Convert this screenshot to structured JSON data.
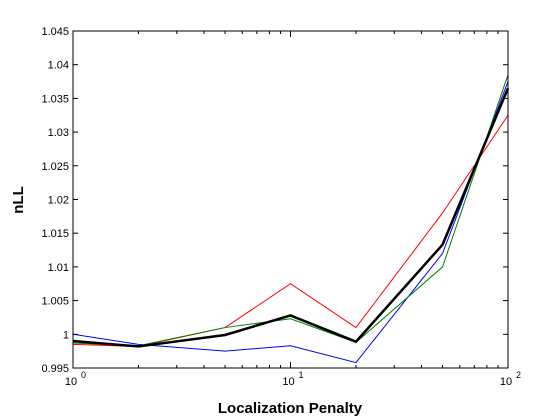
{
  "chart_data": {
    "type": "line",
    "title": "",
    "xlabel": "Localization Penalty",
    "ylabel": "nLL",
    "xscale": "log",
    "xlim": [
      1,
      100
    ],
    "ylim": [
      0.995,
      1.045
    ],
    "grid": false,
    "legend": "none",
    "yticks": [
      "0.995",
      "1",
      "1.005",
      "1.01",
      "1.015",
      "1.02",
      "1.025",
      "1.03",
      "1.035",
      "1.04",
      "1.045"
    ],
    "yticks_values": [
      0.995,
      1.0,
      1.005,
      1.01,
      1.015,
      1.02,
      1.025,
      1.03,
      1.035,
      1.04,
      1.045
    ],
    "xticks": [
      {
        "value": 1,
        "base": "10",
        "exp": "0"
      },
      {
        "value": 10,
        "base": "10",
        "exp": "1"
      },
      {
        "value": 100,
        "base": "10",
        "exp": "2"
      }
    ],
    "x": [
      1,
      2,
      5,
      10,
      20,
      50,
      100
    ],
    "series": [
      {
        "color": "#0000ff",
        "width": 1,
        "values": [
          1.0,
          0.9985,
          0.9975,
          0.9983,
          0.9958,
          1.012,
          1.0375
        ]
      },
      {
        "color": "#ff0000",
        "width": 1,
        "values": [
          0.9985,
          0.9982,
          1.001,
          1.0075,
          1.001,
          1.018,
          1.0325
        ]
      },
      {
        "color": "#008000",
        "width": 1,
        "values": [
          0.9987,
          0.9983,
          1.001,
          1.0023,
          0.9988,
          1.01,
          1.0385
        ]
      },
      {
        "color": "#000000",
        "width": 2.5,
        "values": [
          0.999,
          0.9982,
          0.9999,
          1.0028,
          0.9989,
          1.0133,
          1.0365
        ]
      }
    ]
  }
}
